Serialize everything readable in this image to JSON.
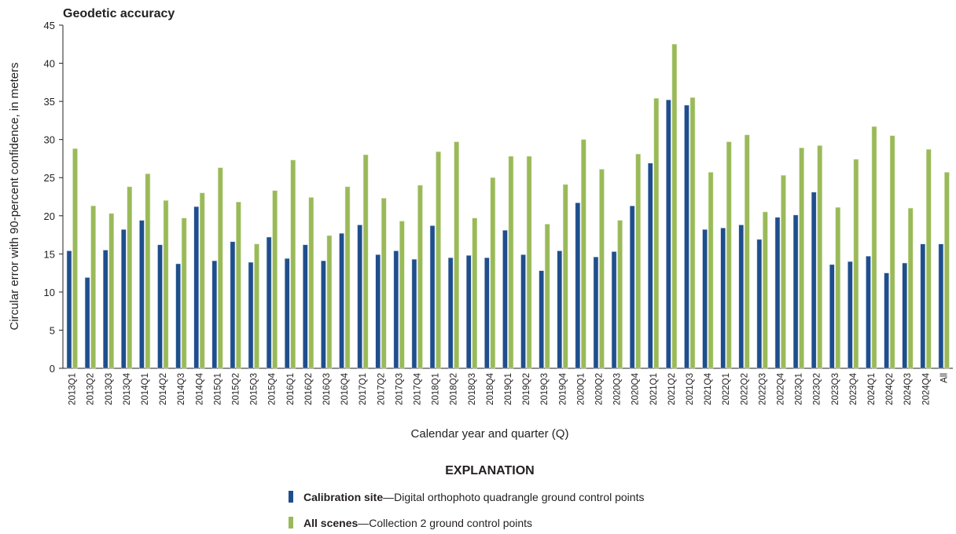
{
  "chart_data": {
    "type": "bar",
    "title": "Geodetic accuracy",
    "xlabel": "Calendar year and quarter (Q)",
    "ylabel": "Circular error with 90-percent confidence, in meters",
    "ylim": [
      0,
      45
    ],
    "yticks": [
      0,
      5,
      10,
      15,
      20,
      25,
      30,
      35,
      40,
      45
    ],
    "grid": false,
    "categories": [
      "2013Q1",
      "2013Q2",
      "2013Q3",
      "2013Q4",
      "2014Q1",
      "2014Q2",
      "2014Q3",
      "2014Q4",
      "2015Q1",
      "2015Q2",
      "2015Q3",
      "2015Q4",
      "2016Q1",
      "2016Q2",
      "2016Q3",
      "2016Q4",
      "2017Q1",
      "2017Q2",
      "2017Q3",
      "2017Q4",
      "2018Q1",
      "2018Q2",
      "2018Q3",
      "2018Q4",
      "2019Q1",
      "2019Q2",
      "2019Q3",
      "2019Q4",
      "2020Q1",
      "2020Q2",
      "2020Q3",
      "2020Q4",
      "2021Q1",
      "2021Q2",
      "2021Q3",
      "2021Q4",
      "2022Q1",
      "2022Q2",
      "2022Q3",
      "2022Q4",
      "2023Q1",
      "2023Q2",
      "2023Q3",
      "2023Q4",
      "2024Q1",
      "2024Q2",
      "2024Q3",
      "2024Q4",
      "All"
    ],
    "series": [
      {
        "name": "Calibration site",
        "color": "#1f4e8c",
        "values": [
          15.4,
          11.9,
          15.5,
          18.2,
          19.4,
          16.2,
          13.7,
          21.2,
          14.1,
          16.6,
          13.9,
          17.2,
          14.4,
          16.2,
          14.1,
          17.7,
          18.8,
          14.9,
          15.4,
          14.3,
          18.7,
          14.5,
          14.8,
          14.5,
          18.1,
          14.9,
          12.8,
          15.4,
          21.7,
          14.6,
          15.3,
          21.3,
          26.9,
          35.2,
          34.5,
          18.2,
          18.4,
          18.8,
          16.9,
          19.8,
          20.1,
          23.1,
          13.6,
          14.0,
          14.7,
          12.5,
          13.8,
          16.3,
          16.3
        ]
      },
      {
        "name": "All scenes",
        "color": "#9aba59",
        "values": [
          28.8,
          21.3,
          20.3,
          23.8,
          25.5,
          22.0,
          19.7,
          23.0,
          26.3,
          21.8,
          16.3,
          23.3,
          27.3,
          22.4,
          17.4,
          23.8,
          28.0,
          22.3,
          19.3,
          24.0,
          28.4,
          29.7,
          19.7,
          25.0,
          27.8,
          27.8,
          18.9,
          24.1,
          30.0,
          26.1,
          19.4,
          28.1,
          35.4,
          42.5,
          35.5,
          25.7,
          29.7,
          30.6,
          20.5,
          25.3,
          28.9,
          29.2,
          21.1,
          27.4,
          31.7,
          30.5,
          21.0,
          28.7,
          25.7
        ]
      }
    ],
    "legend": {
      "heading": "EXPLANATION",
      "placement": "bottom-center",
      "items": [
        {
          "label": "Calibration site",
          "description": "—Digital orthophoto quadrangle ground control points"
        },
        {
          "label": "All scenes",
          "description": "—Collection 2 ground control points"
        }
      ]
    }
  }
}
